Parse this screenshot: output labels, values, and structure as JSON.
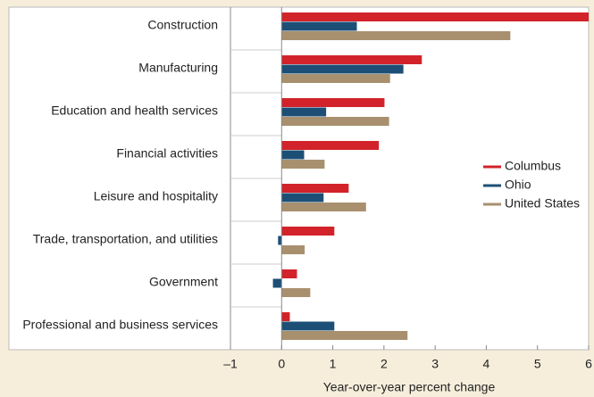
{
  "chart_data": {
    "type": "bar",
    "orientation": "horizontal",
    "x_label": "Year-over-year percent change",
    "categories": [
      "Construction",
      "Manufacturing",
      "Education and health services",
      "Financial activities",
      "Leisure and hospitality",
      "Trade, transportation, and utilities",
      "Government",
      "Professional and business services"
    ],
    "series": [
      {
        "name": "Columbus",
        "color": "#d2232a",
        "values": [
          6.0,
          2.74,
          2.01,
          1.9,
          1.31,
          1.03,
          0.3,
          0.16
        ]
      },
      {
        "name": "Ohio",
        "color": "#1d4f76",
        "values": [
          1.47,
          2.38,
          0.87,
          0.44,
          0.82,
          -0.07,
          -0.17,
          1.03
        ]
      },
      {
        "name": "United States",
        "color": "#a8906f",
        "values": [
          4.47,
          2.12,
          2.1,
          0.84,
          1.65,
          0.45,
          0.56,
          2.46
        ]
      }
    ],
    "xlim": [
      -1,
      6
    ],
    "xticks": [
      {
        "value": -1,
        "label": "–1"
      },
      0,
      1,
      2,
      3,
      4,
      5,
      6
    ],
    "legend": "right"
  }
}
